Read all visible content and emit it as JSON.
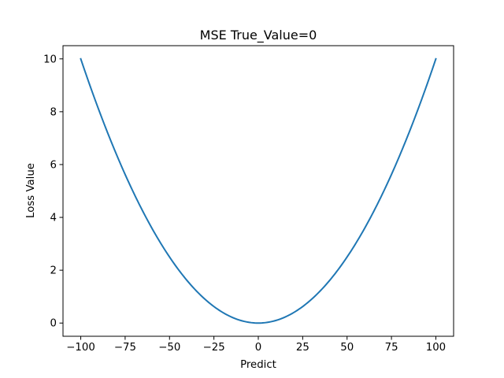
{
  "chart_data": {
    "type": "line",
    "title": "MSE True_Value=0",
    "xlabel": "Predict",
    "ylabel": "Loss Value",
    "xlim": [
      -110,
      110
    ],
    "ylim": [
      -0.5,
      10.5
    ],
    "xticks": [
      -100,
      -75,
      -50,
      -25,
      0,
      25,
      50,
      75,
      100
    ],
    "xtick_labels": [
      "−100",
      "−75",
      "−50",
      "−25",
      "0",
      "25",
      "50",
      "75",
      "100"
    ],
    "yticks": [
      0,
      2,
      4,
      6,
      8,
      10
    ],
    "ytick_labels": [
      "0",
      "2",
      "4",
      "6",
      "8",
      "10"
    ],
    "grid": false,
    "legend": null,
    "series": [
      {
        "name": "MSE",
        "color": "#1f77b4",
        "formula": "y = x^2 / 1000",
        "x": [
          -100,
          -90,
          -80,
          -70,
          -60,
          -50,
          -40,
          -30,
          -20,
          -10,
          0,
          10,
          20,
          30,
          40,
          50,
          60,
          70,
          80,
          90,
          100
        ],
        "y": [
          10.0,
          8.1,
          6.4,
          4.9,
          3.6,
          2.5,
          1.6,
          0.9,
          0.4,
          0.1,
          0.0,
          0.1,
          0.4,
          0.9,
          1.6,
          2.5,
          3.6,
          4.9,
          6.4,
          8.1,
          10.0
        ]
      }
    ]
  }
}
